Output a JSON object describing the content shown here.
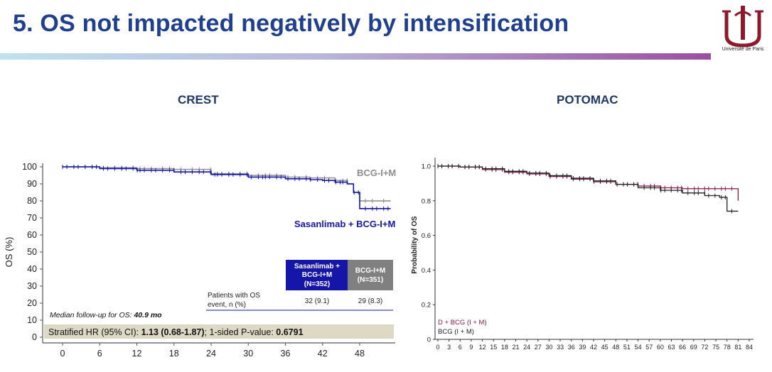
{
  "slide": {
    "title": "5. OS not impacted negatively by intensification",
    "logo_text": "Université de Paris",
    "left_title": "CREST",
    "right_title": "POTOMAC"
  },
  "colors": {
    "title": "#1f3f8f",
    "sasanlimab": "#1515a8",
    "bcg_crest": "#8c8c8c",
    "d_bcg": "#8b1a4a",
    "bcg_potomac": "#222222",
    "hr_box": "#ddd9c4",
    "logo": "#8b1a2a"
  },
  "crest": {
    "ylabel": "OS (%)",
    "yticks": [
      "100",
      "90",
      "80",
      "70",
      "60",
      "50",
      "40",
      "30",
      "20",
      "10",
      "0"
    ],
    "xticks": [
      "0",
      "6",
      "12",
      "18",
      "24",
      "30",
      "36",
      "42",
      "48"
    ],
    "label_bcg": "BCG-I+M",
    "label_sas": "Sasanlimab + BCG-I+M",
    "table": {
      "col1_header": [
        "Sasanlimab +",
        "BCG-I+M",
        "(N=352)"
      ],
      "col2_header": [
        "BCG-I+M",
        "(N=351)"
      ],
      "row_label": [
        "Patients with OS",
        "event, n (%)"
      ],
      "col1_value": "32 (9.1)",
      "col2_value": "29 (8.3)"
    },
    "median_prefix": "Median follow-up for OS: ",
    "median_value": "40.9 mo",
    "hr_prefix": "Stratified HR (95% CI): ",
    "hr_value": "1.13 (0.68-1.87)",
    "hr_mid": "; 1-sided P-value: ",
    "p_value": "0.6791"
  },
  "potomac": {
    "ylabel": "Probability of OS",
    "yticks": [
      "1.0",
      "0.8",
      "0.6",
      "0.4",
      "0.2",
      "0"
    ],
    "xticks": [
      "0",
      "3",
      "6",
      "9",
      "12",
      "15",
      "18",
      "21",
      "24",
      "27",
      "30",
      "33",
      "36",
      "39",
      "42",
      "45",
      "48",
      "51",
      "54",
      "57",
      "60",
      "63",
      "66",
      "69",
      "72",
      "75",
      "78",
      "81",
      "84"
    ],
    "legend_d": "D + BCG (I + M)",
    "legend_bcg": "BCG (I + M)"
  },
  "chart_data": [
    {
      "type": "line",
      "title": "CREST",
      "xlabel": "",
      "ylabel": "OS (%)",
      "xlim": [
        0,
        54
      ],
      "ylim": [
        0,
        100
      ],
      "series": [
        {
          "name": "BCG-I+M",
          "x": [
            0,
            6,
            12,
            18,
            24,
            30,
            36,
            40,
            44,
            46,
            47,
            48,
            53
          ],
          "y": [
            100,
            99.5,
            99,
            98.5,
            96,
            95,
            94,
            93.5,
            92,
            90,
            85,
            80,
            80
          ]
        },
        {
          "name": "Sasanlimab + BCG-I+M",
          "x": [
            0,
            6,
            12,
            18,
            24,
            30,
            36,
            40,
            42,
            44,
            46,
            47,
            48,
            53
          ],
          "y": [
            100,
            99,
            98,
            97,
            95.5,
            94,
            93,
            92.5,
            92,
            91,
            90,
            85,
            75.5,
            75.5
          ]
        }
      ]
    },
    {
      "type": "line",
      "title": "POTOMAC",
      "xlabel": "",
      "ylabel": "Probability of OS",
      "xlim": [
        0,
        84
      ],
      "ylim": [
        0,
        1.0
      ],
      "series": [
        {
          "name": "D + BCG (I + M)",
          "x": [
            0,
            6,
            12,
            18,
            24,
            30,
            36,
            42,
            48,
            54,
            60,
            66,
            72,
            78,
            81
          ],
          "y": [
            1.0,
            0.995,
            0.98,
            0.965,
            0.955,
            0.94,
            0.925,
            0.91,
            0.895,
            0.885,
            0.875,
            0.87,
            0.87,
            0.87,
            0.8
          ]
        },
        {
          "name": "BCG (I + M)",
          "x": [
            0,
            6,
            12,
            18,
            24,
            30,
            36,
            42,
            48,
            54,
            60,
            66,
            72,
            76,
            78,
            81
          ],
          "y": [
            1.0,
            0.995,
            0.985,
            0.97,
            0.96,
            0.945,
            0.93,
            0.915,
            0.895,
            0.875,
            0.86,
            0.845,
            0.83,
            0.82,
            0.74,
            0.74
          ]
        }
      ]
    }
  ]
}
